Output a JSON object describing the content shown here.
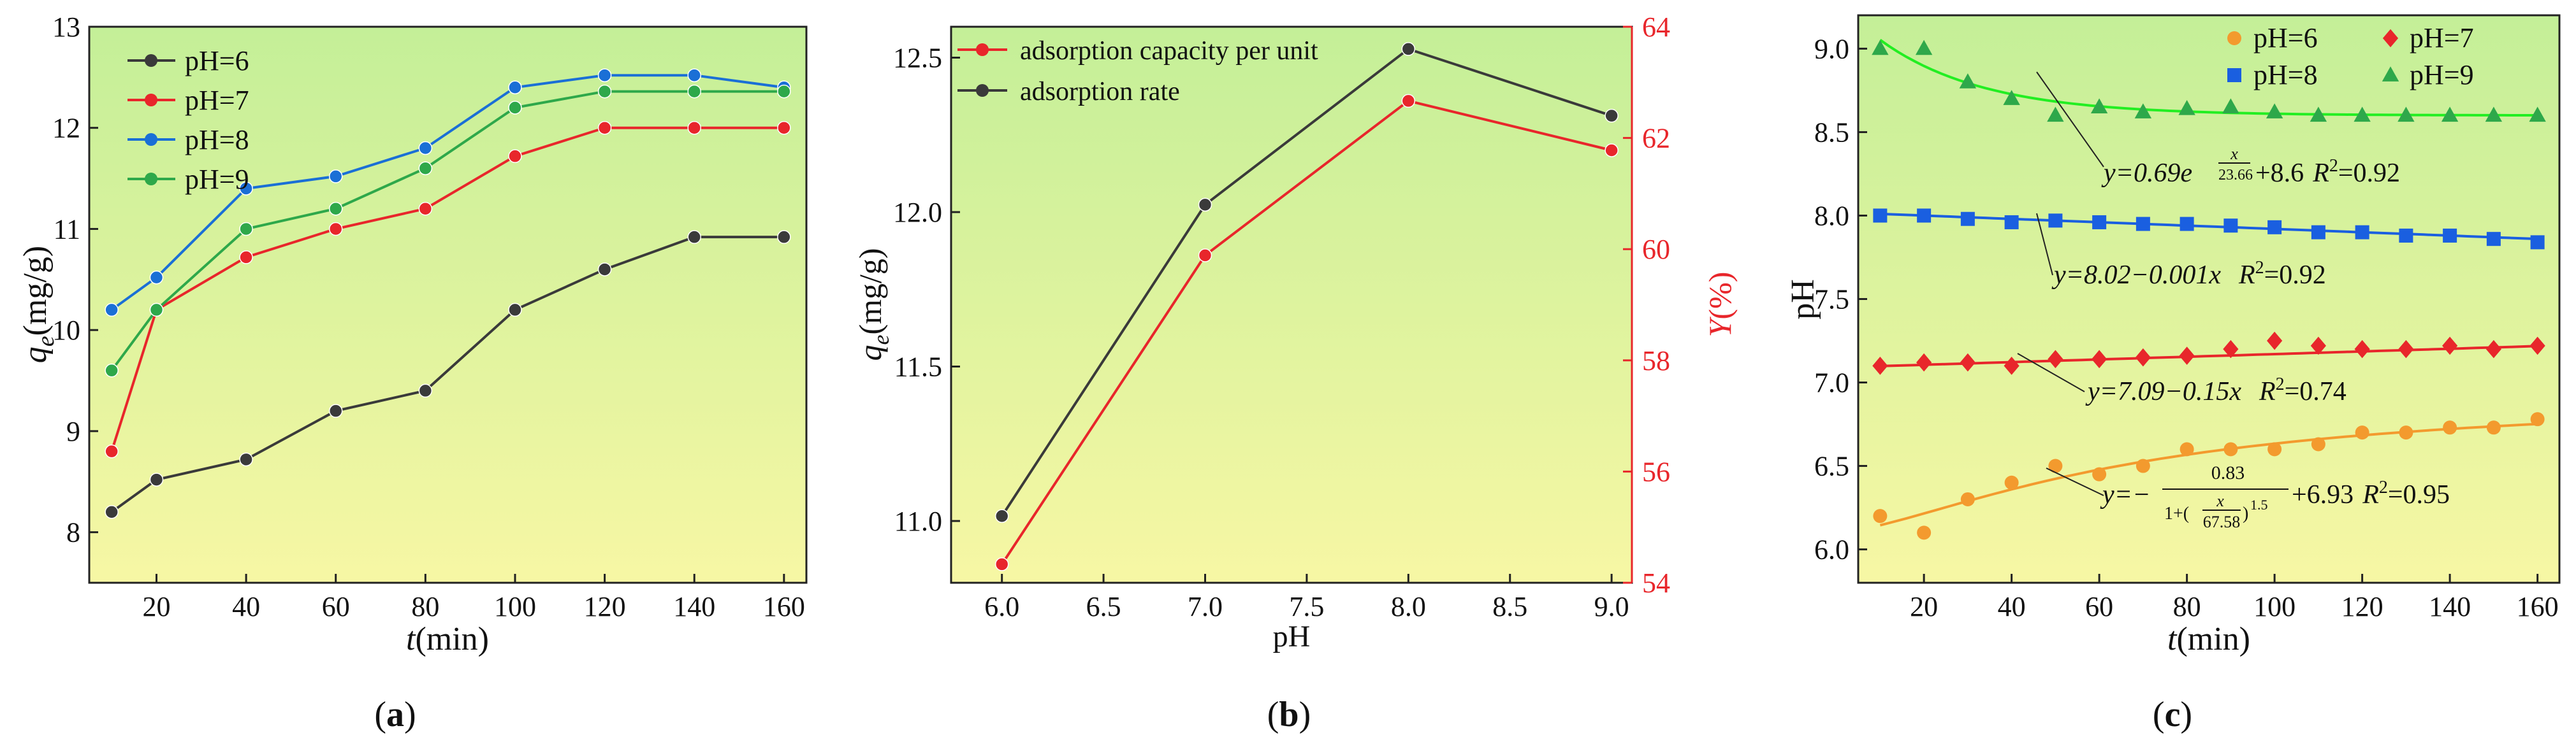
{
  "chart_data": [
    {
      "panel_label": "a",
      "type": "line",
      "xlabel_var": "t",
      "xlabel_unit": "(min)",
      "ylabel_var": "q",
      "ylabel_sub": "e",
      "ylabel_unit": "(mg/g)",
      "xlim": [
        5,
        165
      ],
      "ylim": [
        7.5,
        13
      ],
      "xticks": [
        20,
        40,
        60,
        80,
        100,
        120,
        140,
        160
      ],
      "yticks": [
        8,
        9,
        10,
        11,
        12,
        13
      ],
      "legend_position": "top-left",
      "x": [
        10,
        20,
        40,
        60,
        80,
        100,
        120,
        140,
        160
      ],
      "series": [
        {
          "name": "pH=6",
          "color": "#3a3a3a",
          "values": [
            8.2,
            8.52,
            8.72,
            9.2,
            9.4,
            10.2,
            10.6,
            10.92,
            10.92
          ]
        },
        {
          "name": "pH=7",
          "color": "#e8262b",
          "values": [
            8.8,
            10.2,
            10.72,
            11.0,
            11.2,
            11.72,
            12.0,
            12.0,
            12.0
          ]
        },
        {
          "name": "pH=8",
          "color": "#1a6fd6",
          "values": [
            10.2,
            10.52,
            11.4,
            11.52,
            11.8,
            12.4,
            12.52,
            12.52,
            12.4
          ]
        },
        {
          "name": "pH=9",
          "color": "#2ea84a",
          "values": [
            9.6,
            10.2,
            11.0,
            11.2,
            11.6,
            12.2,
            12.36,
            12.36,
            12.36
          ]
        }
      ]
    },
    {
      "panel_label": "b",
      "type": "line",
      "xlabel": "pH",
      "ylabel_var": "q",
      "ylabel_sub": "e",
      "ylabel_unit": "(mg/g)",
      "ylabel_right_var": "Y",
      "ylabel_right_unit": "(%)",
      "xlim": [
        5.75,
        9.1
      ],
      "ylim": [
        10.8,
        12.6
      ],
      "ylim_right": [
        54,
        64
      ],
      "xticks": [
        "6.0",
        "6.5",
        "7.0",
        "7.5",
        "8.0",
        "8.5",
        "9.0"
      ],
      "yticks": [
        "11.0",
        "11.5",
        "12.0",
        "12.5"
      ],
      "yticks_right": [
        "54",
        "56",
        "58",
        "60",
        "62",
        "64"
      ],
      "legend_position": "top-left",
      "x": [
        6.0,
        7.0,
        8.0,
        9.0
      ],
      "series": [
        {
          "name": "adsorption capacity per unit",
          "color": "#e8262b",
          "axis": "left",
          "values": [
            10.86,
            11.86,
            12.36,
            12.2
          ]
        },
        {
          "name": "adsorption rate",
          "color": "#3a3a3a",
          "axis": "right",
          "values": [
            55.2,
            60.8,
            63.6,
            62.4
          ]
        }
      ]
    },
    {
      "panel_label": "c",
      "type": "scatter",
      "xlabel_var": "t",
      "xlabel_unit": "(min)",
      "ylabel": "pH",
      "xlim": [
        5,
        165
      ],
      "ylim": [
        5.8,
        9.2
      ],
      "xticks": [
        20,
        40,
        60,
        80,
        100,
        120,
        140,
        160
      ],
      "yticks": [
        "6.0",
        "6.5",
        "7.0",
        "7.5",
        "8.0",
        "8.5",
        "9.0"
      ],
      "legend_position": "top-right",
      "x": [
        10,
        20,
        30,
        40,
        50,
        60,
        70,
        80,
        90,
        100,
        110,
        120,
        130,
        140,
        150,
        160
      ],
      "series": [
        {
          "name": "pH=6",
          "color": "#f39a2e",
          "marker": "circle",
          "fit_color": "#f39a2e",
          "values": [
            6.2,
            6.1,
            6.3,
            6.4,
            6.5,
            6.45,
            6.5,
            6.6,
            6.6,
            6.6,
            6.63,
            6.7,
            6.7,
            6.73,
            6.73,
            6.78
          ]
        },
        {
          "name": "pH=7",
          "color": "#e8262b",
          "marker": "diamond",
          "fit_color": "#e8262b",
          "values": [
            7.1,
            7.12,
            7.12,
            7.1,
            7.14,
            7.14,
            7.15,
            7.16,
            7.2,
            7.25,
            7.22,
            7.2,
            7.2,
            7.22,
            7.2,
            7.22
          ]
        },
        {
          "name": "pH=8",
          "color": "#1a5fe0",
          "marker": "square",
          "fit_color": "#1a5fe0",
          "values": [
            8.0,
            8.0,
            7.98,
            7.96,
            7.97,
            7.96,
            7.95,
            7.95,
            7.94,
            7.93,
            7.9,
            7.9,
            7.88,
            7.88,
            7.86,
            7.84
          ]
        },
        {
          "name": "pH=9",
          "color": "#2ea84a",
          "marker": "triangle",
          "fit_color": "#22ee22",
          "values": [
            9.0,
            9.0,
            8.8,
            8.7,
            8.6,
            8.65,
            8.62,
            8.64,
            8.65,
            8.62,
            8.6,
            8.6,
            8.6,
            8.6,
            8.6,
            8.6
          ]
        }
      ],
      "annotations": [
        {
          "y_pre": "y=0.69e",
          "exp_num": "x",
          "exp_den": "23.66",
          "y_post": "+8.6",
          "r2_label": "R",
          "r2_value": "=0.92"
        },
        {
          "y_pre": "y=8.02−0.001x",
          "r2_label": "R",
          "r2_value": "=0.92"
        },
        {
          "y_pre": "y=7.09−0.15x",
          "r2_label": "R",
          "r2_value": "=0.74"
        },
        {
          "y_pre": "y=−",
          "frac_num": "0.83",
          "frac_den_pre": "1+(",
          "frac_den_num": "x",
          "frac_den_den": "67.58",
          "frac_den_post": ")",
          "frac_den_exp": "1.5",
          "y_post": "+6.93",
          "r2_label": "R",
          "r2_value": "=0.95"
        }
      ]
    }
  ]
}
